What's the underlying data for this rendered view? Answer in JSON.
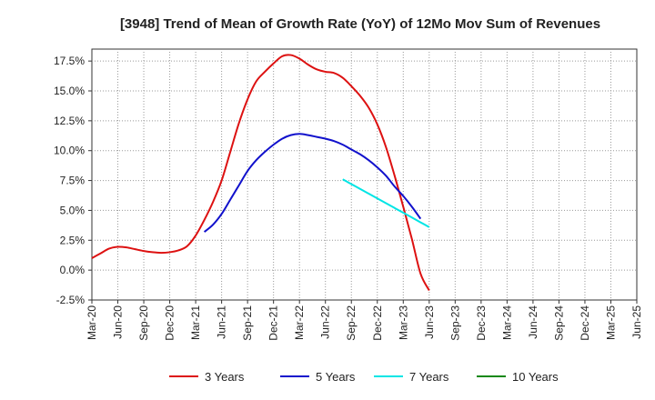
{
  "chart_data": {
    "type": "line",
    "title": "[3948]  Trend of Mean of Growth Rate (YoY) of 12Mo Mov Sum of Revenues",
    "xlabel": "",
    "ylabel": "",
    "ylim": [
      -2.5,
      18.5
    ],
    "yticks": [
      -2.5,
      0,
      2.5,
      5,
      7.5,
      10,
      12.5,
      15,
      17.5
    ],
    "ytick_labels": [
      "-2.5%",
      "0.0%",
      "2.5%",
      "5.0%",
      "7.5%",
      "10.0%",
      "12.5%",
      "15.0%",
      "17.5%"
    ],
    "xticks": [
      "Mar-20",
      "Jun-20",
      "Sep-20",
      "Dec-20",
      "Mar-21",
      "Jun-21",
      "Sep-21",
      "Dec-21",
      "Mar-22",
      "Jun-22",
      "Sep-22",
      "Dec-22",
      "Mar-23",
      "Jun-23",
      "Sep-23",
      "Dec-23",
      "Mar-24",
      "Jun-24",
      "Sep-24",
      "Dec-24",
      "Mar-25",
      "Jun-25"
    ],
    "grid": true,
    "legend_position": "bottom",
    "series": [
      {
        "name": "3 Years",
        "color": "#dd1111",
        "points": [
          [
            0,
            1.0
          ],
          [
            1,
            1.4
          ],
          [
            2,
            1.8
          ],
          [
            3,
            1.95
          ],
          [
            4,
            1.9
          ],
          [
            5,
            1.75
          ],
          [
            6,
            1.6
          ],
          [
            7,
            1.5
          ],
          [
            8,
            1.45
          ],
          [
            9,
            1.5
          ],
          [
            10,
            1.65
          ],
          [
            11,
            2.0
          ],
          [
            12,
            2.9
          ],
          [
            13,
            4.2
          ],
          [
            14,
            5.7
          ],
          [
            15,
            7.5
          ],
          [
            16,
            9.9
          ],
          [
            17,
            12.3
          ],
          [
            18,
            14.3
          ],
          [
            19,
            15.8
          ],
          [
            20,
            16.6
          ],
          [
            21,
            17.3
          ],
          [
            22,
            17.9
          ],
          [
            23,
            18.0
          ],
          [
            24,
            17.7
          ],
          [
            25,
            17.2
          ],
          [
            26,
            16.8
          ],
          [
            27,
            16.6
          ],
          [
            28,
            16.5
          ],
          [
            29,
            16.1
          ],
          [
            30,
            15.4
          ],
          [
            31,
            14.6
          ],
          [
            32,
            13.6
          ],
          [
            33,
            12.2
          ],
          [
            34,
            10.3
          ],
          [
            35,
            7.9
          ],
          [
            36,
            5.3
          ],
          [
            37,
            2.6
          ],
          [
            38,
            -0.3
          ],
          [
            39,
            -1.7
          ]
        ]
      },
      {
        "name": "5 Years",
        "color": "#1111cc",
        "points": [
          [
            13,
            3.2
          ],
          [
            14,
            3.8
          ],
          [
            15,
            4.7
          ],
          [
            16,
            5.9
          ],
          [
            17,
            7.1
          ],
          [
            18,
            8.3
          ],
          [
            19,
            9.2
          ],
          [
            20,
            9.9
          ],
          [
            21,
            10.5
          ],
          [
            22,
            11.0
          ],
          [
            23,
            11.3
          ],
          [
            24,
            11.4
          ],
          [
            25,
            11.3
          ],
          [
            26,
            11.15
          ],
          [
            27,
            11.0
          ],
          [
            28,
            10.8
          ],
          [
            29,
            10.5
          ],
          [
            30,
            10.1
          ],
          [
            31,
            9.7
          ],
          [
            32,
            9.2
          ],
          [
            33,
            8.6
          ],
          [
            34,
            7.9
          ],
          [
            35,
            7.0
          ],
          [
            36,
            6.2
          ],
          [
            37,
            5.3
          ],
          [
            38,
            4.3
          ]
        ]
      },
      {
        "name": "7 Years",
        "color": "#00e5e5",
        "points": [
          [
            29,
            7.6
          ],
          [
            30,
            7.2
          ],
          [
            31,
            6.8
          ],
          [
            32,
            6.4
          ],
          [
            33,
            6.0
          ],
          [
            34,
            5.6
          ],
          [
            35,
            5.2
          ],
          [
            36,
            4.8
          ],
          [
            37,
            4.4
          ],
          [
            38,
            4.0
          ],
          [
            39,
            3.6
          ]
        ]
      },
      {
        "name": "10 Years",
        "color": "#118811",
        "points": []
      }
    ]
  }
}
